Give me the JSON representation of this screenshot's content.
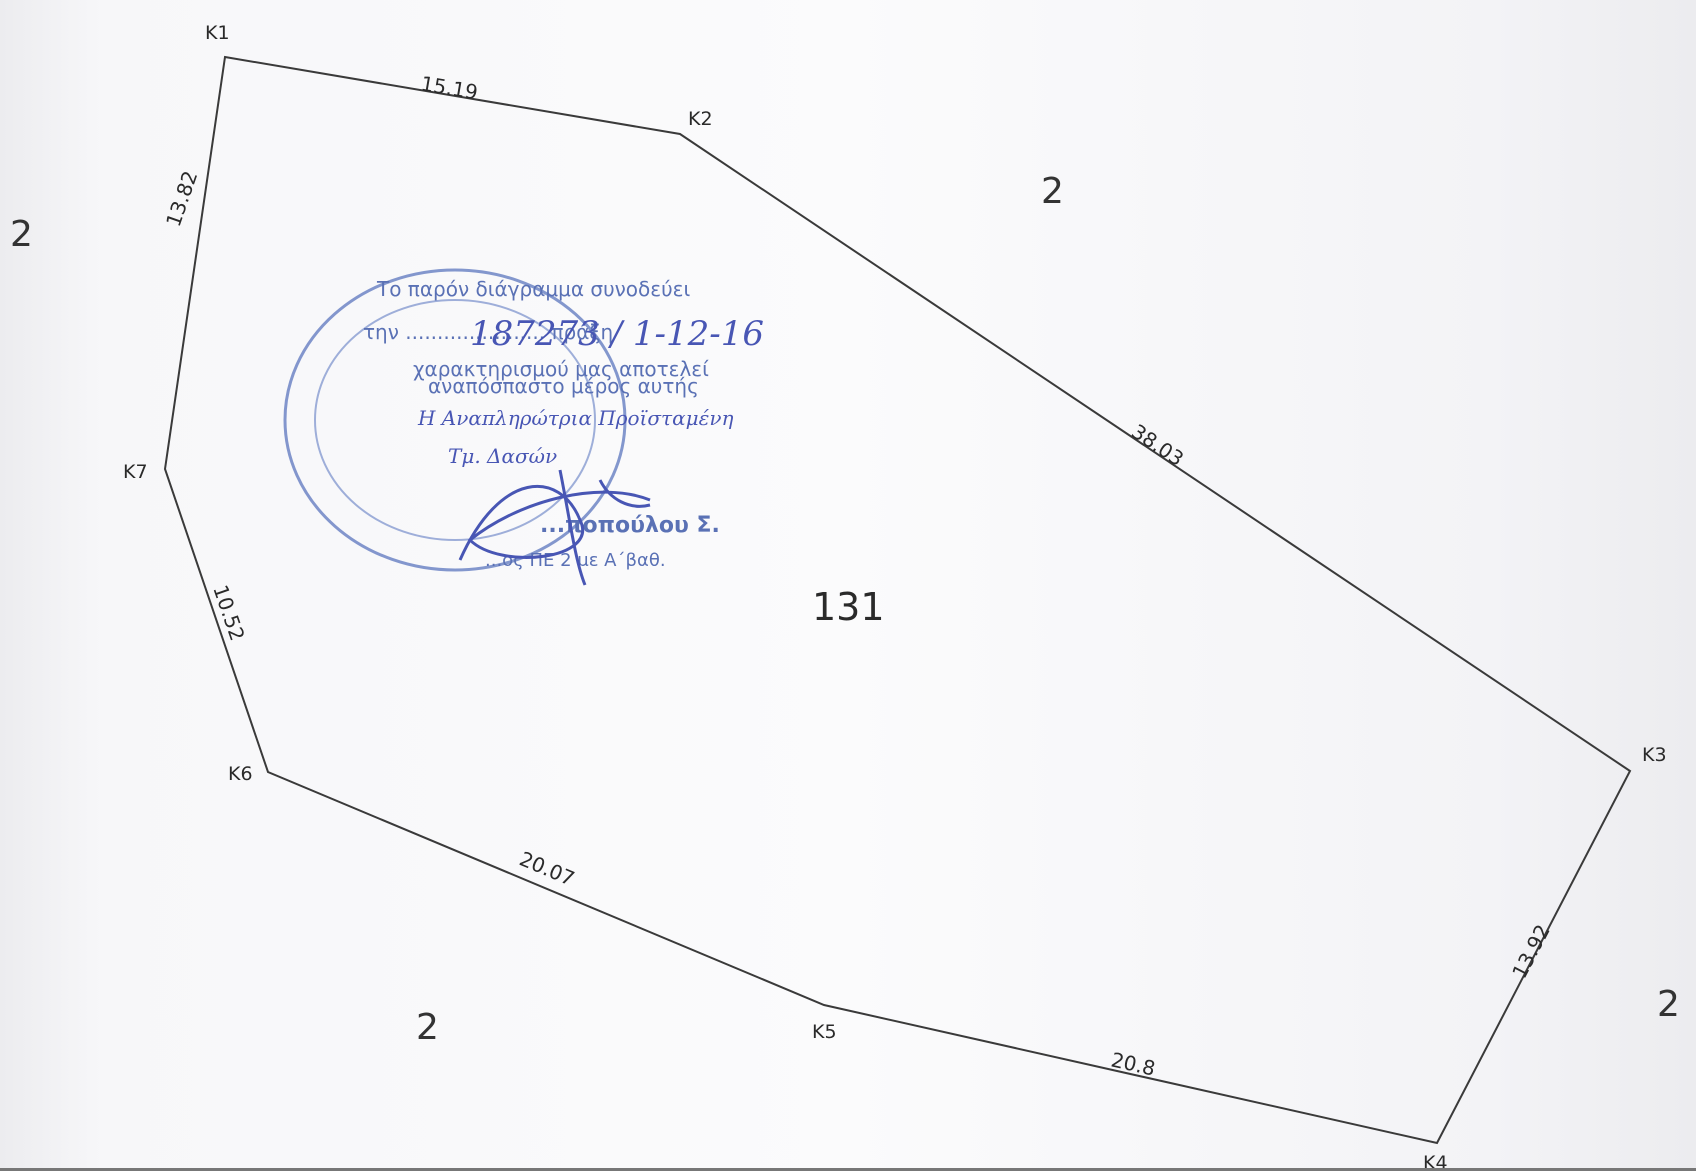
{
  "vertices": [
    {
      "id": "K1",
      "label": "K1"
    },
    {
      "id": "K2",
      "label": "K2"
    },
    {
      "id": "K3",
      "label": "K3"
    },
    {
      "id": "K4",
      "label": "K4"
    },
    {
      "id": "K5",
      "label": "K5"
    },
    {
      "id": "K6",
      "label": "K6"
    },
    {
      "id": "K7",
      "label": "K7"
    }
  ],
  "edges": [
    {
      "from": "K1",
      "to": "K2",
      "length": "15.19"
    },
    {
      "from": "K2",
      "to": "K3",
      "length": "38.03"
    },
    {
      "from": "K3",
      "to": "K4",
      "length": "13.92"
    },
    {
      "from": "K4",
      "to": "K5",
      "length": "20.8"
    },
    {
      "from": "K5",
      "to": "K6",
      "length": "20.07"
    },
    {
      "from": "K6",
      "to": "K7",
      "length": "10.52"
    },
    {
      "from": "K7",
      "to": "K1",
      "length": "13.82"
    }
  ],
  "parcel": {
    "number": "131"
  },
  "neighbors": [
    "2",
    "2",
    "2",
    "2"
  ],
  "stamp": {
    "lines": [
      "Το παρόν διάγραμμα συνοδεύει",
      "την ...................... πράξη",
      "χαρακτηρισμού μας αποτελεί",
      "αναπόσπαστο μέρος αυτής",
      "...ποπούλου Σ.",
      "...ος ΠΕ 2 με Α΄βαθ."
    ],
    "handwritten": [
      "187273 / 1-12-16",
      "Η Αναπληρώτρια Προϊσταμένη",
      "Τμ. Δασών"
    ],
    "color": "#3f5aa9"
  },
  "colors": {
    "line": "#3a3a3a",
    "stamp": "#3f5aa9",
    "ink": "#2a3aa8"
  }
}
